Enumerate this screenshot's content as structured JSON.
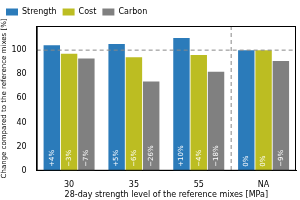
{
  "chart_data": {
    "type": "bar",
    "x_label": "28-day strength level of the reference mixes [MPa]",
    "y_label": "Change compared to the reference mixes [%]",
    "categories": [
      "30",
      "35",
      "55",
      "NA"
    ],
    "series": [
      {
        "name": "Strength",
        "color": "#2b7bba",
        "values": [
          104,
          105,
          110,
          100
        ],
        "annotations": [
          "+4%",
          "+5%",
          "+10%",
          "0%"
        ]
      },
      {
        "name": "Cost",
        "color": "#bcbd22",
        "values": [
          97,
          94,
          96,
          100
        ],
        "annotations": [
          "−3%",
          "−6%",
          "−4%",
          "0%"
        ]
      },
      {
        "name": "Carbon",
        "color": "#808080",
        "values": [
          93,
          74,
          82,
          91
        ],
        "annotations": [
          "−7%",
          "−26%",
          "−18%",
          "−9%"
        ]
      }
    ],
    "reference_y": 100,
    "ylim": [
      0,
      120
    ],
    "yticks": [
      0,
      20,
      40,
      60,
      80,
      100
    ],
    "grid": false,
    "legend": "top"
  }
}
